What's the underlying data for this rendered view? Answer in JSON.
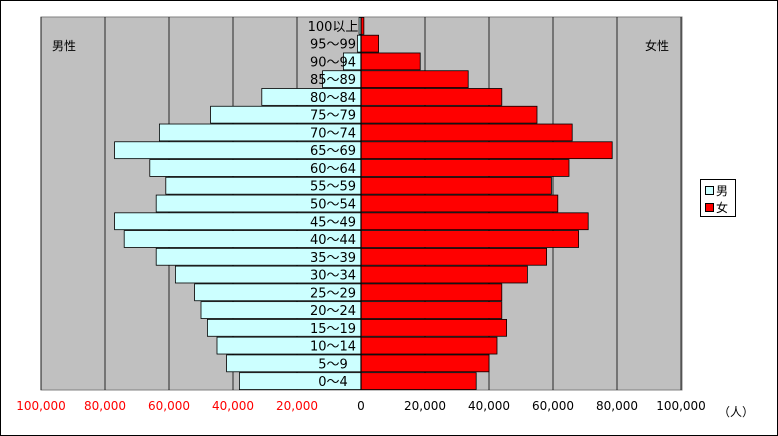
{
  "labels": {
    "male_side": "男性",
    "female_side": "女性",
    "unit": "（人）"
  },
  "legend": {
    "male": "男",
    "female": "女"
  },
  "colors": {
    "male": "#ccffff",
    "female": "#ff0000",
    "plot_bg": "#c0c0c0",
    "left_ticks": "#ff0000",
    "right_ticks": "#000000"
  },
  "chart_data": {
    "type": "bar",
    "orientation": "horizontal-population-pyramid",
    "categories": [
      "100以上",
      "95～99",
      "90～94",
      "85～89",
      "80～84",
      "75～79",
      "70～74",
      "65～69",
      "60～64",
      "55～59",
      "50～54",
      "45～49",
      "40～44",
      "35～39",
      "30～34",
      "25～29",
      "20～24",
      "15～19",
      "10～14",
      "5～9",
      "0～4"
    ],
    "series": [
      {
        "name": "男",
        "values": [
          600,
          1100,
          5500,
          12000,
          31000,
          47000,
          63000,
          77000,
          66000,
          61000,
          64000,
          77000,
          74000,
          64000,
          58000,
          52000,
          50000,
          48000,
          45000,
          42000,
          38000
        ]
      },
      {
        "name": "女",
        "values": [
          900,
          5500,
          18500,
          33500,
          44000,
          55000,
          66000,
          78500,
          65000,
          59500,
          61500,
          71000,
          68000,
          58000,
          52000,
          44000,
          44000,
          45500,
          42500,
          40000,
          36000
        ]
      }
    ],
    "x_ticks_left": [
      "100,000",
      "80,000",
      "60,000",
      "40,000",
      "20,000"
    ],
    "x_ticks_right": [
      "0",
      "20,000",
      "40,000",
      "60,000",
      "80,000",
      "100,000"
    ],
    "xlim": [
      -100000,
      100000
    ],
    "grid": true,
    "legend_position": "right"
  }
}
